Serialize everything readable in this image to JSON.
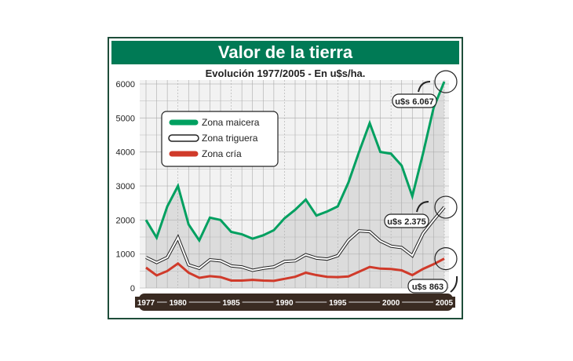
{
  "title": "Valor de la tierra",
  "subtitle": "Evolución 1977/2005 - En u$s/ha.",
  "chart_data": {
    "type": "line",
    "title": "Valor de la tierra",
    "subtitle": "Evolución 1977/2005 - En u$s/ha.",
    "x": [
      1977,
      1978,
      1979,
      1980,
      1981,
      1982,
      1983,
      1984,
      1985,
      1986,
      1987,
      1988,
      1989,
      1990,
      1991,
      1992,
      1993,
      1994,
      1995,
      1996,
      1997,
      1998,
      1999,
      2000,
      2001,
      2002,
      2003,
      2004,
      2005
    ],
    "x_tick_labels": [
      "1977",
      "1980",
      "1985",
      "1990",
      "1995",
      "2000",
      "2005"
    ],
    "y_tick_labels": [
      "0",
      "1000",
      "2000",
      "3000",
      "4000",
      "5000",
      "6000"
    ],
    "ylim": [
      0,
      6000
    ],
    "grid": true,
    "legend_position": "top-left",
    "series": [
      {
        "name": "Zona maicera",
        "color": "#00a060",
        "values": [
          2000,
          1480,
          2400,
          3000,
          1870,
          1400,
          2070,
          2000,
          1650,
          1580,
          1450,
          1550,
          1700,
          2050,
          2300,
          2600,
          2130,
          2250,
          2400,
          3100,
          4000,
          4850,
          4000,
          3950,
          3600,
          2700,
          3950,
          5300,
          6067
        ]
      },
      {
        "name": "Zona triguera",
        "color": "#ffffff",
        "values": [
          900,
          750,
          900,
          1480,
          680,
          580,
          830,
          800,
          650,
          620,
          520,
          580,
          620,
          780,
          800,
          980,
          880,
          850,
          950,
          1400,
          1680,
          1660,
          1380,
          1230,
          1190,
          950,
          1600,
          2000,
          2375
        ]
      },
      {
        "name": "Zona cría",
        "color": "#d03a2a",
        "values": [
          600,
          370,
          500,
          720,
          450,
          300,
          350,
          320,
          220,
          220,
          240,
          220,
          210,
          270,
          330,
          450,
          380,
          330,
          320,
          340,
          480,
          620,
          570,
          560,
          520,
          380,
          560,
          700,
          863
        ]
      }
    ],
    "annotations": [
      "u$s 6.067",
      "u$s 2.375",
      "u$s 863"
    ]
  }
}
